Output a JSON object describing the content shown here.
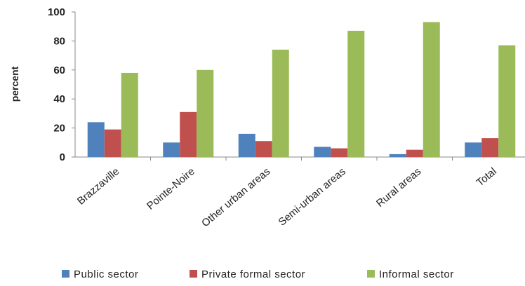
{
  "chart_data": {
    "type": "bar",
    "categories": [
      "Brazzaville",
      "Pointe-Noire",
      "Other urban areas",
      "Semi-urban areas",
      "Rural areas",
      "Total"
    ],
    "series": [
      {
        "name": "Public sector",
        "color": "#4F81BD",
        "values": [
          24,
          10,
          16,
          7,
          2,
          10
        ]
      },
      {
        "name": "Private formal sector",
        "color": "#C0504D",
        "values": [
          19,
          31,
          11,
          6,
          5,
          13
        ]
      },
      {
        "name": "Informal sector",
        "color": "#9BBB59",
        "values": [
          58,
          60,
          74,
          87,
          93,
          77
        ]
      }
    ],
    "title": "",
    "xlabel": "",
    "ylabel": "percent",
    "ylim": [
      0,
      100
    ],
    "yticks": [
      0,
      20,
      40,
      60,
      80,
      100
    ],
    "grid": false,
    "legend_position": "bottom"
  }
}
